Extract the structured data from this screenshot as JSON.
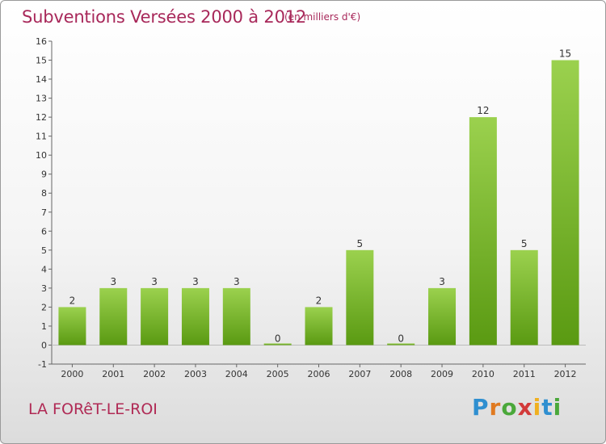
{
  "title": "Subventions Versées 2000 à 2012",
  "unit": "(en milliers d'€)",
  "place": "LA FORêT-LE-ROI",
  "logo": {
    "text": "Proxiti"
  },
  "colors": {
    "bar_top": "#9bd14e",
    "bar_bottom": "#5a9a12",
    "title": "#a8285a"
  },
  "chart_data": {
    "type": "bar",
    "categories": [
      "2000",
      "2001",
      "2002",
      "2003",
      "2004",
      "2005",
      "2006",
      "2007",
      "2008",
      "2009",
      "2010",
      "2011",
      "2012"
    ],
    "values": [
      2,
      3,
      3,
      3,
      3,
      0,
      2,
      5,
      0,
      3,
      12,
      5,
      15
    ],
    "ylim": [
      -1,
      16
    ],
    "yticks": [
      -1,
      0,
      1,
      2,
      3,
      4,
      5,
      6,
      7,
      8,
      9,
      10,
      11,
      12,
      13,
      14,
      15,
      16
    ],
    "grid": false
  }
}
